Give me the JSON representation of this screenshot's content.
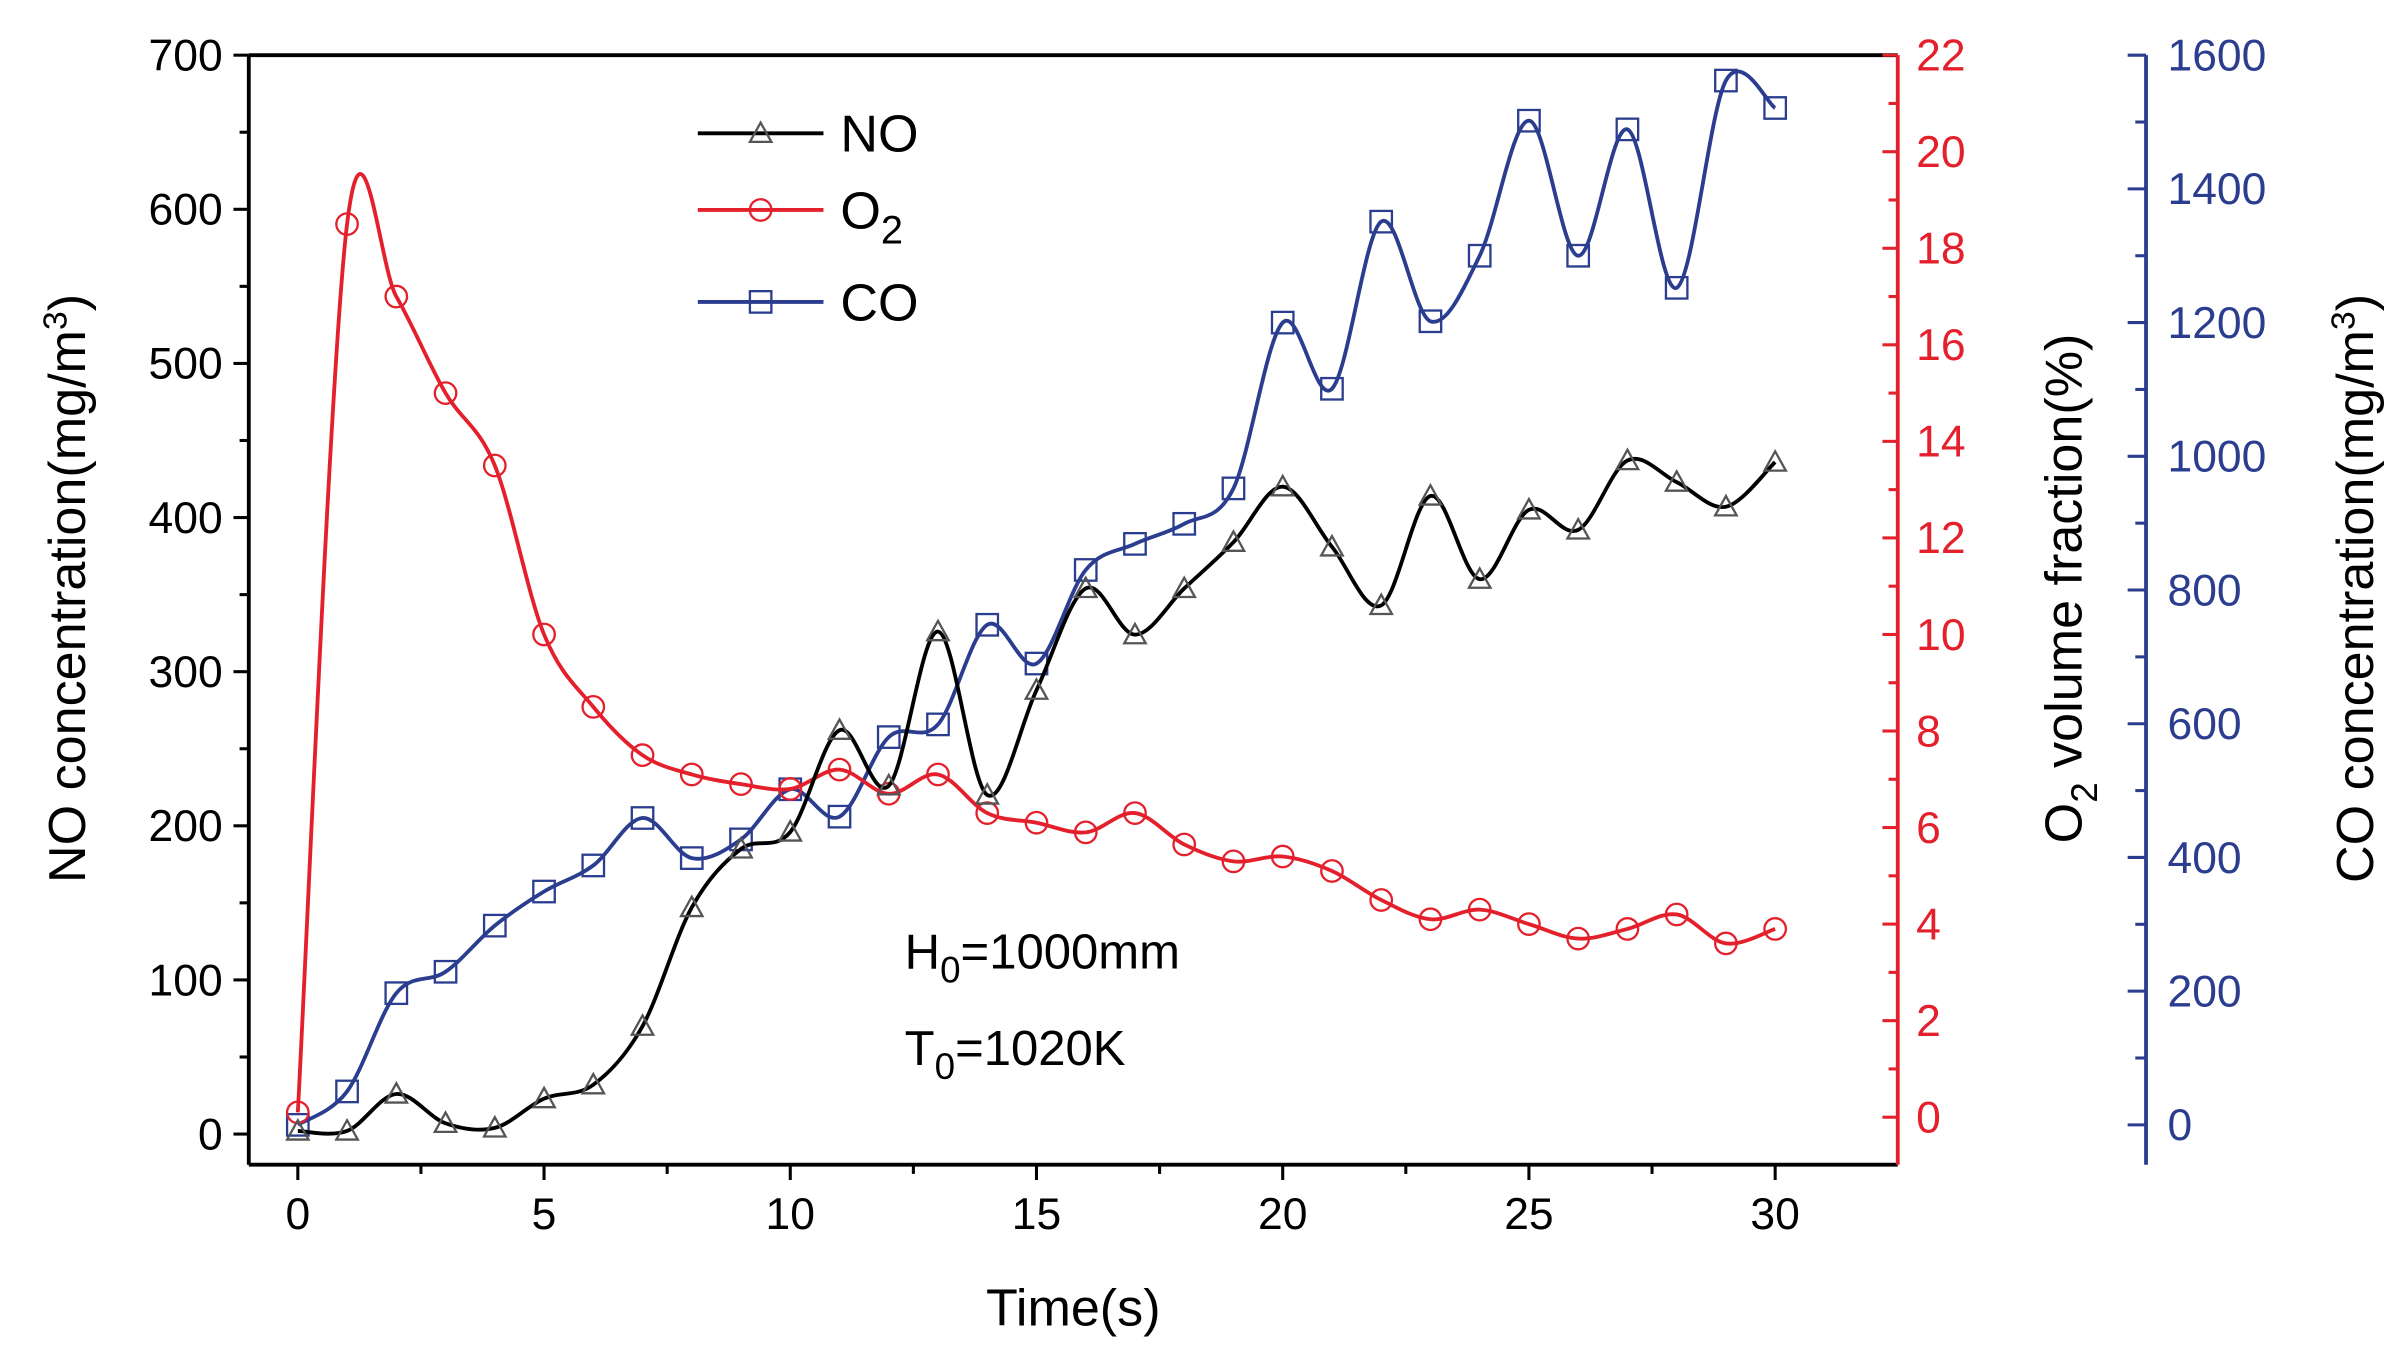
{
  "chart_data": {
    "type": "line",
    "x": [
      0,
      1,
      2,
      3,
      4,
      5,
      6,
      7,
      8,
      9,
      10,
      11,
      12,
      13,
      14,
      15,
      16,
      17,
      18,
      19,
      20,
      21,
      22,
      23,
      24,
      25,
      26,
      27,
      28,
      29,
      30
    ],
    "xlabel": "Time(s)",
    "xlim": [
      -1,
      32
    ],
    "xticks": [
      "0",
      "5",
      "10",
      "15",
      "20",
      "25",
      "30"
    ],
    "axes": {
      "left": {
        "label_main": "NO concentration(mg/m",
        "label_sup": "3",
        "label_end": ")",
        "ylim": [
          0,
          700
        ],
        "ticks": [
          "0",
          "100",
          "200",
          "300",
          "400",
          "500",
          "600",
          "700"
        ],
        "color": "#000000"
      },
      "right1": {
        "label_main": "O",
        "label_sub": "2",
        "label_end": " volume fraction(%)",
        "ylim": [
          0,
          22
        ],
        "ticks": [
          "0",
          "2",
          "4",
          "6",
          "8",
          "10",
          "12",
          "14",
          "16",
          "18",
          "20",
          "22"
        ],
        "color": "#e3202b"
      },
      "right2": {
        "label_main": "CO concentration(mg/m",
        "label_sup": "3",
        "label_end": ")",
        "ylim": [
          0,
          1600
        ],
        "ticks": [
          "0",
          "200",
          "400",
          "600",
          "800",
          "1000",
          "1200",
          "1400",
          "1600"
        ],
        "color": "#2a3d8f"
      }
    },
    "series": [
      {
        "name": "NO",
        "name_main": "NO",
        "name_sub": "",
        "axis": "left",
        "marker": "triangle",
        "color": "#000000",
        "values": [
          2,
          2,
          26,
          7,
          4,
          23,
          32,
          70,
          147,
          185,
          196,
          262,
          226,
          326,
          220,
          288,
          354,
          324,
          354,
          384,
          420,
          381,
          343,
          414,
          360,
          405,
          392,
          437,
          423,
          407,
          436
        ]
      },
      {
        "name": "O2",
        "name_main": "O",
        "name_sub": "2",
        "axis": "right1",
        "marker": "circle",
        "color": "#e3202b",
        "values": [
          0.1,
          18.5,
          17.0,
          15.0,
          13.5,
          10.0,
          8.5,
          7.5,
          7.1,
          6.9,
          6.8,
          7.2,
          6.7,
          7.1,
          6.3,
          6.1,
          5.9,
          6.3,
          5.65,
          5.3,
          5.4,
          5.1,
          4.5,
          4.1,
          4.3,
          4.0,
          3.7,
          3.9,
          4.2,
          3.6,
          3.9
        ]
      },
      {
        "name": "CO",
        "name_main": "CO",
        "name_sub": "",
        "axis": "right2",
        "marker": "square",
        "color": "#2a3d8f",
        "values": [
          0,
          50,
          197,
          229,
          298,
          349,
          388,
          459,
          399,
          427,
          502,
          461,
          580,
          599,
          748,
          690,
          830,
          869,
          899,
          952,
          1200,
          1101,
          1351,
          1202,
          1300,
          1502,
          1300,
          1489,
          1252,
          1562,
          1521
        ]
      }
    ],
    "annotations": [
      {
        "main": "H",
        "sub": "0",
        "end": "=1000mm"
      },
      {
        "main": "T",
        "sub": "0",
        "end": "=1020K"
      }
    ],
    "legend_position": "top-left",
    "grid": false
  }
}
